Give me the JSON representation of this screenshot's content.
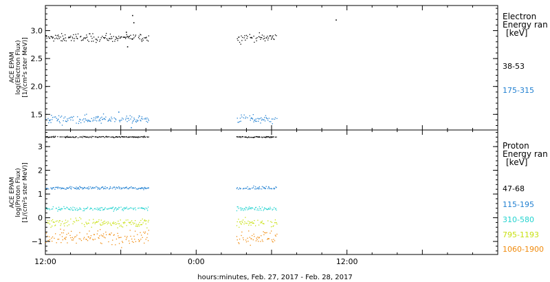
{
  "chart_data": [
    {
      "type": "scatter",
      "panel": "electron",
      "ylabel": [
        "ACE EPAM",
        "log(Electron Flux)",
        "[1/(cm²s ster MeV)]"
      ],
      "ylim": [
        1.22,
        3.45
      ],
      "yticks": [
        1.5,
        2.0,
        2.5,
        3.0
      ],
      "ytick_labels": [
        "1.5",
        "2.0",
        "2.5",
        "3.0"
      ],
      "legend_title": [
        "Electron",
        "Energy ran",
        "[keV]"
      ],
      "series": [
        {
          "name": "38-53",
          "color": "#000000",
          "mean": 2.88,
          "spread": 0.05
        },
        {
          "name": "175-315",
          "color": "#1f7fd1",
          "mean": 1.42,
          "spread": 0.05
        }
      ],
      "outliers": [
        {
          "series": 0,
          "x": 6.9,
          "y": 3.28
        },
        {
          "series": 0,
          "x": 7.0,
          "y": 3.15
        },
        {
          "series": 0,
          "x": 6.4,
          "y": 2.98
        },
        {
          "series": 0,
          "x": 6.5,
          "y": 2.72
        },
        {
          "series": 0,
          "x": 23.1,
          "y": 3.2
        },
        {
          "series": 1,
          "x": 5.8,
          "y": 1.55
        },
        {
          "series": 1,
          "x": 6.8,
          "y": 1.27
        }
      ]
    },
    {
      "type": "scatter",
      "panel": "proton",
      "ylabel": [
        "ACE EPAM",
        "log(Proton Flux)",
        "[1/(cm²s ster MeV)]"
      ],
      "ylim": [
        -1.55,
        3.7
      ],
      "yticks": [
        -1,
        0,
        1,
        2,
        3
      ],
      "ytick_labels": [
        "−1",
        "0",
        "1",
        "2",
        "3"
      ],
      "legend_title": [
        "Proton",
        "Energy ran",
        "[keV]"
      ],
      "series": [
        {
          "name": "47-68",
          "color": "#000000",
          "mean": 3.42,
          "spread": 0.02
        },
        {
          "name": "115-195",
          "color": "#1f7fd1",
          "mean": 1.27,
          "spread": 0.04
        },
        {
          "name": "310-580",
          "color": "#22d3cf",
          "mean": 0.4,
          "spread": 0.06
        },
        {
          "name": "795-1193",
          "color": "#c8e010",
          "mean": -0.2,
          "spread": 0.12
        },
        {
          "name": "1060-1900",
          "color": "#f08a0c",
          "mean": -0.8,
          "spread": 0.2
        }
      ]
    }
  ],
  "data_segments_hours": [
    [
      0,
      8.2
    ],
    [
      15.2,
      18.4
    ]
  ],
  "x_range_hours": [
    0,
    36
  ],
  "x_ticks": [
    0,
    12,
    24
  ],
  "x_tick_labels": [
    "12:00",
    "0:00",
    "12:00"
  ],
  "x_title": "hours:minutes, Feb. 27, 2017 - Feb. 28, 2017"
}
